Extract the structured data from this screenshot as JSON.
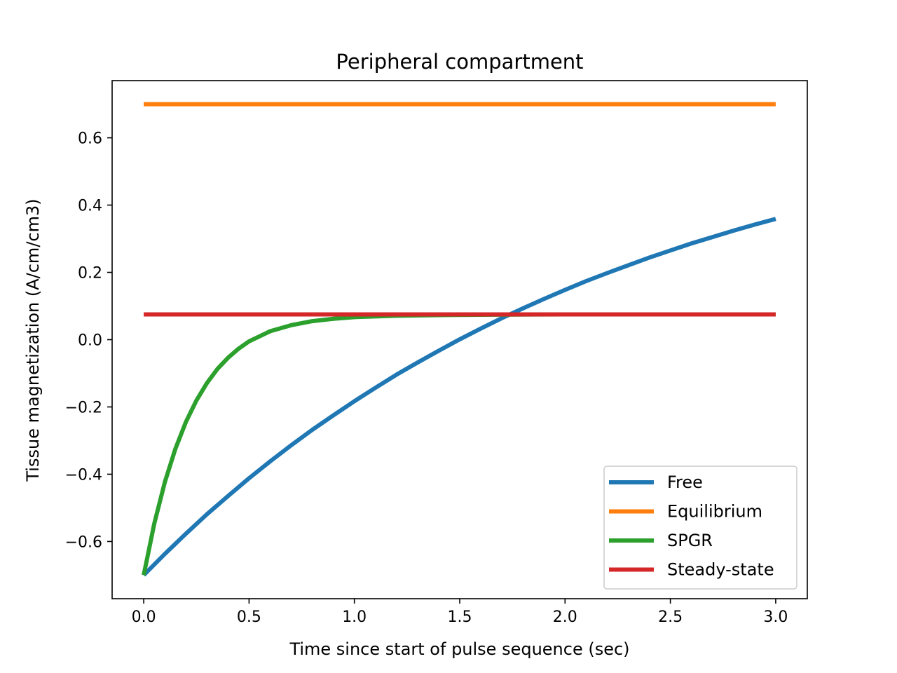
{
  "chart_data": {
    "type": "line",
    "title": "Peripheral compartment",
    "xlabel": "Time since start of pulse sequence (sec)",
    "ylabel": "Tissue magnetization (A/cm/cm3)",
    "xlim": [
      -0.15,
      3.15
    ],
    "ylim": [
      -0.77,
      0.77
    ],
    "xticks": [
      0.0,
      0.5,
      1.0,
      1.5,
      2.0,
      2.5,
      3.0
    ],
    "xtick_labels": [
      "0.0",
      "0.5",
      "1.0",
      "1.5",
      "2.0",
      "2.5",
      "3.0"
    ],
    "yticks": [
      -0.6,
      -0.4,
      -0.2,
      0.0,
      0.2,
      0.4,
      0.6
    ],
    "ytick_labels": [
      "−0.6",
      "−0.4",
      "−0.2",
      "0.0",
      "0.2",
      "0.4",
      "0.6"
    ],
    "grid": false,
    "legend": "lower right",
    "series": [
      {
        "name": "Free",
        "color": "#1f77b4",
        "x": [
          0.0,
          0.1,
          0.2,
          0.3,
          0.4,
          0.5,
          0.6,
          0.7,
          0.8,
          0.9,
          1.0,
          1.1,
          1.2,
          1.3,
          1.4,
          1.5,
          1.6,
          1.7,
          1.8,
          1.9,
          2.0,
          2.1,
          2.2,
          2.3,
          2.4,
          2.5,
          2.6,
          2.7,
          2.8,
          2.9,
          3.0
        ],
        "y": [
          -0.7,
          -0.637,
          -0.577,
          -0.519,
          -0.465,
          -0.412,
          -0.362,
          -0.314,
          -0.268,
          -0.225,
          -0.183,
          -0.143,
          -0.104,
          -0.068,
          -0.033,
          0.001,
          0.033,
          0.064,
          0.093,
          0.121,
          0.148,
          0.174,
          0.198,
          0.221,
          0.244,
          0.265,
          0.286,
          0.305,
          0.324,
          0.342,
          0.359
        ]
      },
      {
        "name": "Equilibrium",
        "color": "#ff7f0e",
        "x": [
          0.0,
          3.0
        ],
        "y": [
          0.7,
          0.7
        ]
      },
      {
        "name": "SPGR",
        "color": "#2ca02c",
        "x": [
          0.0,
          0.05,
          0.1,
          0.15,
          0.2,
          0.25,
          0.3,
          0.35,
          0.4,
          0.45,
          0.5,
          0.6,
          0.7,
          0.8,
          0.9,
          1.0,
          1.2,
          1.4,
          1.6,
          2.0,
          2.5,
          3.0
        ],
        "y": [
          -0.7,
          -0.547,
          -0.424,
          -0.325,
          -0.245,
          -0.181,
          -0.129,
          -0.087,
          -0.054,
          -0.027,
          -0.005,
          0.025,
          0.043,
          0.055,
          0.062,
          0.067,
          0.071,
          0.073,
          0.074,
          0.075,
          0.075,
          0.075
        ]
      },
      {
        "name": "Steady-state",
        "color": "#d62728",
        "x": [
          0.0,
          3.0
        ],
        "y": [
          0.075,
          0.075
        ]
      }
    ]
  }
}
